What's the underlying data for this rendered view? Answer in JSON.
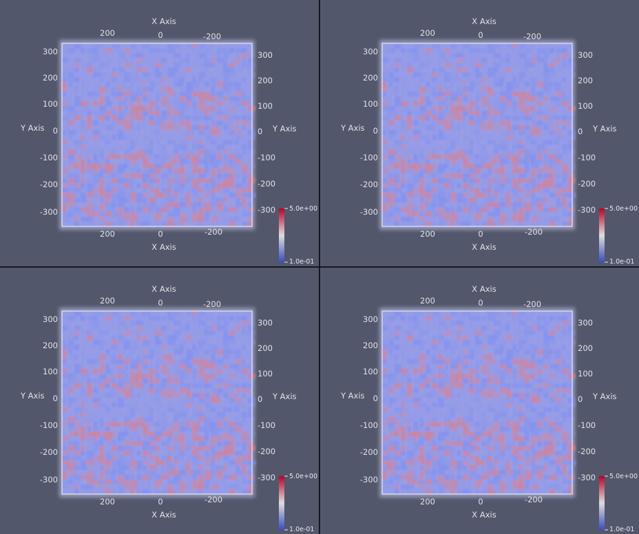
{
  "app": {
    "layout": "2x2 render views"
  },
  "views": [
    {
      "id": "top-left",
      "x_axis_title": "X Axis",
      "y_axis_title": "Y Axis",
      "x_ticks": [
        "200",
        "0",
        "-200"
      ],
      "y_ticks": [
        "300",
        "200",
        "100",
        "0",
        "-100",
        "-200",
        "-300"
      ],
      "colorbar": {
        "max_label": "5.0e+00",
        "min_label": "1.0e-01"
      }
    },
    {
      "id": "top-right",
      "x_axis_title": "X Axis",
      "y_axis_title": "Y Axis",
      "x_ticks": [
        "200",
        "0",
        "-200"
      ],
      "y_ticks": [
        "300",
        "200",
        "100",
        "0",
        "-100",
        "-200",
        "-300"
      ],
      "colorbar": {
        "max_label": "5.0e+00",
        "min_label": "1.0e-01"
      }
    },
    {
      "id": "bottom-left",
      "x_axis_title": "X Axis",
      "y_axis_title": "Y Axis",
      "x_ticks": [
        "200",
        "0",
        "-200"
      ],
      "y_ticks": [
        "300",
        "200",
        "100",
        "0",
        "-100",
        "-200",
        "-300"
      ],
      "colorbar": {
        "max_label": "5.0e+00",
        "min_label": "1.0e-01"
      }
    },
    {
      "id": "bottom-right",
      "x_axis_title": "X Axis",
      "y_axis_title": "Y Axis",
      "x_ticks": [
        "200",
        "0",
        "-200"
      ],
      "y_ticks": [
        "300",
        "200",
        "100",
        "0",
        "-100",
        "-200",
        "-300"
      ],
      "colorbar": {
        "max_label": "5.0e+00",
        "min_label": "1.0e-01"
      }
    }
  ],
  "colors": {
    "background": "#52576b",
    "separator": "#14161e",
    "volume_base": "#8f96e8",
    "volume_cool": "#7f8ff0",
    "volume_warm": "#d97d8e",
    "colormap_high": "#b40426",
    "colormap_mid": "#dddcdc",
    "colormap_low": "#3b4cc0"
  }
}
